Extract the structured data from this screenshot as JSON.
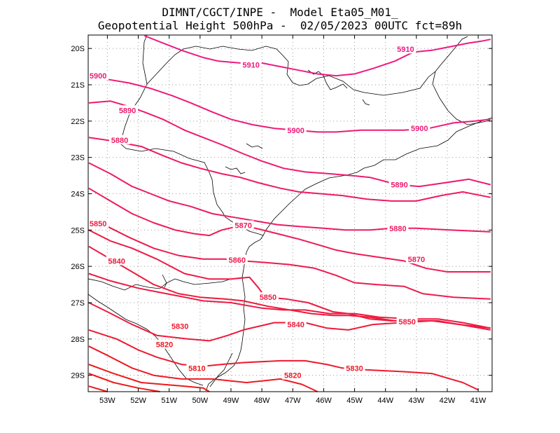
{
  "title": {
    "line1": "DIMNT/CGCT/INPE -  Model Eta05_M01_",
    "line2": "Geopotential Height 500hPa -  02/05/2023 00UTC fct=89h"
  },
  "axes": {
    "lon_ticks": [
      "53W",
      "52W",
      "51W",
      "50W",
      "49W",
      "48W",
      "47W",
      "46W",
      "45W",
      "44W",
      "43W",
      "42W",
      "41W"
    ],
    "lat_ticks": [
      "20S",
      "21S",
      "22S",
      "23S",
      "24S",
      "25S",
      "26S",
      "27S",
      "28S",
      "29S"
    ]
  },
  "colors": {
    "high": "#ee1a82",
    "low": "#ee1a1a"
  },
  "contours": [
    {
      "value": 5810,
      "pts": [
        [
          -53.6,
          -29.3
        ],
        [
          -53.0,
          -29.45
        ]
      ]
    },
    {
      "value": 5810,
      "pts": [
        [
          -53.6,
          -28.95
        ],
        [
          -52.8,
          -29.2
        ],
        [
          -52.0,
          -29.35
        ],
        [
          -51.3,
          -29.45
        ]
      ]
    },
    {
      "value": 5810,
      "pts": [
        [
          -53.6,
          -28.7
        ],
        [
          -52.8,
          -28.95
        ],
        [
          -51.9,
          -29.2
        ],
        [
          -50.5,
          -29.3
        ],
        [
          -49.9,
          -29.35
        ],
        [
          -49.7,
          -29.45
        ]
      ]
    },
    {
      "value": 5820,
      "pts": [
        [
          -53.6,
          -28.2
        ],
        [
          -53.0,
          -28.45
        ],
        [
          -52.2,
          -28.8
        ],
        [
          -51.5,
          -29.0
        ],
        [
          -50.6,
          -29.1
        ],
        [
          -49.6,
          -29.1
        ],
        [
          -48.5,
          -29.2
        ],
        [
          -47.4,
          -29.1
        ],
        [
          -46.7,
          -29.25
        ],
        [
          -46.2,
          -29.45
        ]
      ]
    },
    {
      "value": 5830,
      "pts": [
        [
          -53.6,
          -27.75
        ],
        [
          -52.7,
          -28.0
        ],
        [
          -52.0,
          -28.3
        ],
        [
          -51.4,
          -28.5
        ],
        [
          -50.6,
          -28.7
        ],
        [
          -49.9,
          -28.75
        ],
        [
          -49.3,
          -28.7
        ],
        [
          -48.6,
          -28.65
        ],
        [
          -47.4,
          -28.6
        ],
        [
          -46.6,
          -28.6
        ],
        [
          -45.9,
          -28.7
        ],
        [
          -45.4,
          -28.8
        ],
        [
          -44.6,
          -28.85
        ],
        [
          -43.4,
          -28.9
        ],
        [
          -42.5,
          -28.95
        ],
        [
          -41.5,
          -29.2
        ],
        [
          -41.0,
          -29.4
        ]
      ]
    },
    {
      "value": 5840,
      "pts": [
        [
          -53.6,
          -27.0
        ],
        [
          -53.0,
          -27.25
        ],
        [
          -52.2,
          -27.6
        ],
        [
          -51.4,
          -27.9
        ],
        [
          -50.4,
          -28.0
        ],
        [
          -49.7,
          -28.05
        ],
        [
          -49.1,
          -27.9
        ],
        [
          -48.6,
          -27.75
        ],
        [
          -47.6,
          -27.55
        ],
        [
          -46.6,
          -27.55
        ],
        [
          -45.9,
          -27.7
        ],
        [
          -45.2,
          -27.75
        ],
        [
          -44.4,
          -27.6
        ],
        [
          -43.5,
          -27.55
        ],
        [
          -42.5,
          -27.5
        ],
        [
          -41.6,
          -27.6
        ],
        [
          -40.6,
          -27.75
        ]
      ]
    },
    {
      "value": 5850,
      "pts": [
        [
          -53.6,
          -26.2
        ],
        [
          -52.9,
          -26.4
        ],
        [
          -52.0,
          -26.6
        ],
        [
          -51.4,
          -26.7
        ],
        [
          -50.8,
          -26.8
        ],
        [
          -49.9,
          -26.95
        ],
        [
          -49.0,
          -27.0
        ],
        [
          -48.0,
          -27.15
        ],
        [
          -47.3,
          -27.2
        ],
        [
          -46.6,
          -27.2
        ],
        [
          -45.8,
          -27.3
        ],
        [
          -45.0,
          -27.3
        ],
        [
          -44.2,
          -27.4
        ],
        [
          -43.1,
          -27.45
        ],
        [
          -42.3,
          -27.45
        ],
        [
          -41.5,
          -27.55
        ],
        [
          -40.6,
          -27.7
        ]
      ]
    },
    {
      "value": 5850,
      "pts": [
        [
          -53.6,
          -25.0
        ],
        [
          -52.9,
          -25.3
        ],
        [
          -52.2,
          -25.5
        ],
        [
          -51.4,
          -25.8
        ],
        [
          -50.5,
          -26.2
        ],
        [
          -49.7,
          -26.35
        ],
        [
          -49.0,
          -26.35
        ],
        [
          -48.4,
          -26.3
        ],
        [
          -48.1,
          -26.6
        ],
        [
          -47.9,
          -26.85
        ],
        [
          -47.2,
          -26.9
        ],
        [
          -46.5,
          -27.0
        ],
        [
          -45.7,
          -27.25
        ],
        [
          -45.2,
          -27.3
        ],
        [
          -44.5,
          -27.45
        ],
        [
          -43.8,
          -27.5
        ],
        [
          -43.0,
          -27.5
        ],
        [
          -42.3,
          -27.5
        ],
        [
          -41.6,
          -27.6
        ],
        [
          -40.6,
          -27.7
        ]
      ]
    },
    {
      "value": 5840,
      "pts": [
        [
          -53.6,
          -25.45
        ],
        [
          -52.8,
          -25.85
        ],
        [
          -52.2,
          -26.15
        ],
        [
          -51.5,
          -26.5
        ],
        [
          -50.7,
          -26.75
        ],
        [
          -50.0,
          -26.85
        ],
        [
          -49.2,
          -26.9
        ],
        [
          -48.6,
          -26.95
        ],
        [
          -47.8,
          -27.1
        ],
        [
          -47.1,
          -27.2
        ],
        [
          -46.4,
          -27.3
        ],
        [
          -45.7,
          -27.35
        ],
        [
          -45.2,
          -27.35
        ],
        [
          -44.5,
          -27.4
        ],
        [
          -43.7,
          -27.5
        ],
        [
          -43.0,
          -27.5
        ]
      ]
    },
    {
      "value": 5860,
      "pts": [
        [
          -53.6,
          -24.75
        ],
        [
          -53.0,
          -24.9
        ],
        [
          -52.3,
          -25.2
        ],
        [
          -51.5,
          -25.5
        ],
        [
          -50.7,
          -25.7
        ],
        [
          -49.9,
          -25.8
        ],
        [
          -49.2,
          -25.8
        ],
        [
          -48.6,
          -25.85
        ],
        [
          -47.8,
          -25.9
        ],
        [
          -47.1,
          -25.95
        ],
        [
          -46.3,
          -26.05
        ],
        [
          -45.6,
          -26.25
        ],
        [
          -45.0,
          -26.45
        ],
        [
          -44.3,
          -26.5
        ],
        [
          -43.4,
          -26.55
        ],
        [
          -42.8,
          -26.75
        ],
        [
          -41.8,
          -26.85
        ],
        [
          -40.6,
          -26.9
        ]
      ]
    },
    {
      "value": 5870,
      "pts": [
        [
          -53.6,
          -23.85
        ],
        [
          -52.9,
          -24.2
        ],
        [
          -52.2,
          -24.55
        ],
        [
          -51.5,
          -24.8
        ],
        [
          -50.8,
          -25.0
        ],
        [
          -50.2,
          -25.1
        ],
        [
          -49.7,
          -25.15
        ],
        [
          -49.3,
          -25.0
        ],
        [
          -48.8,
          -24.9
        ],
        [
          -48.2,
          -24.95
        ],
        [
          -47.5,
          -25.1
        ],
        [
          -46.8,
          -25.25
        ],
        [
          -46.2,
          -25.4
        ],
        [
          -45.6,
          -25.55
        ],
        [
          -45.0,
          -25.65
        ],
        [
          -44.2,
          -25.75
        ],
        [
          -43.4,
          -25.85
        ],
        [
          -42.7,
          -26.05
        ],
        [
          -42.0,
          -26.15
        ],
        [
          -40.6,
          -26.15
        ]
      ]
    },
    {
      "value": 5880,
      "pts": [
        [
          -53.6,
          -23.15
        ],
        [
          -52.9,
          -23.45
        ],
        [
          -52.2,
          -23.8
        ],
        [
          -51.6,
          -24.0
        ],
        [
          -51.0,
          -24.2
        ],
        [
          -50.3,
          -24.35
        ],
        [
          -49.6,
          -24.55
        ],
        [
          -48.9,
          -24.65
        ],
        [
          -48.2,
          -24.75
        ],
        [
          -47.5,
          -24.85
        ],
        [
          -46.8,
          -24.9
        ],
        [
          -46.0,
          -24.95
        ],
        [
          -45.3,
          -25.0
        ],
        [
          -44.5,
          -25.0
        ],
        [
          -43.8,
          -24.95
        ],
        [
          -43.0,
          -24.95
        ],
        [
          -41.9,
          -25.0
        ],
        [
          -40.6,
          -25.05
        ]
      ]
    },
    {
      "value": 5880,
      "pts": [
        [
          -53.6,
          -22.45
        ],
        [
          -52.8,
          -22.55
        ],
        [
          -51.9,
          -22.7
        ],
        [
          -51.2,
          -22.95
        ],
        [
          -50.6,
          -23.15
        ],
        [
          -50.0,
          -23.3
        ],
        [
          -49.3,
          -23.45
        ],
        [
          -48.7,
          -23.55
        ],
        [
          -48.1,
          -23.7
        ],
        [
          -47.4,
          -23.85
        ],
        [
          -46.8,
          -23.95
        ],
        [
          -46.1,
          -24.0
        ],
        [
          -45.4,
          -24.05
        ],
        [
          -44.6,
          -24.15
        ],
        [
          -43.8,
          -24.2
        ],
        [
          -43.0,
          -24.2
        ],
        [
          -42.2,
          -24.05
        ],
        [
          -41.5,
          -23.95
        ],
        [
          -40.6,
          -24.1
        ]
      ]
    },
    {
      "value": 5890,
      "pts": [
        [
          -53.6,
          -21.5
        ],
        [
          -52.9,
          -21.45
        ],
        [
          -52.3,
          -21.6
        ],
        [
          -51.8,
          -21.75
        ],
        [
          -51.2,
          -21.95
        ],
        [
          -50.5,
          -22.25
        ],
        [
          -49.9,
          -22.45
        ],
        [
          -49.3,
          -22.65
        ],
        [
          -48.6,
          -22.9
        ],
        [
          -48.0,
          -23.1
        ],
        [
          -47.3,
          -23.3
        ],
        [
          -46.6,
          -23.4
        ],
        [
          -45.8,
          -23.45
        ],
        [
          -45.1,
          -23.5
        ],
        [
          -44.5,
          -23.55
        ],
        [
          -43.6,
          -23.75
        ],
        [
          -42.9,
          -23.8
        ],
        [
          -42.1,
          -23.7
        ],
        [
          -41.3,
          -23.6
        ],
        [
          -40.6,
          -23.75
        ]
      ]
    },
    {
      "value": 5900,
      "pts": [
        [
          -53.6,
          -20.8
        ],
        [
          -53.0,
          -20.85
        ],
        [
          -52.3,
          -20.95
        ],
        [
          -51.6,
          -21.1
        ],
        [
          -50.9,
          -21.3
        ],
        [
          -50.3,
          -21.5
        ],
        [
          -49.6,
          -21.75
        ],
        [
          -49.0,
          -21.95
        ],
        [
          -48.3,
          -22.1
        ],
        [
          -47.6,
          -22.2
        ],
        [
          -46.9,
          -22.25
        ],
        [
          -46.2,
          -22.3
        ],
        [
          -45.6,
          -22.3
        ],
        [
          -44.8,
          -22.25
        ],
        [
          -44.1,
          -22.25
        ],
        [
          -43.4,
          -22.25
        ],
        [
          -42.6,
          -22.2
        ],
        [
          -41.8,
          -22.05
        ],
        [
          -41.1,
          -22.0
        ],
        [
          -40.6,
          -21.95
        ]
      ]
    },
    {
      "value": 5910,
      "pts": [
        [
          -51.8,
          -19.65
        ],
        [
          -51.2,
          -19.85
        ],
        [
          -50.6,
          -20.05
        ],
        [
          -49.9,
          -20.25
        ],
        [
          -49.4,
          -20.35
        ],
        [
          -48.7,
          -20.4
        ],
        [
          -48.0,
          -20.4
        ],
        [
          -47.4,
          -20.5
        ],
        [
          -46.8,
          -20.6
        ],
        [
          -46.2,
          -20.7
        ],
        [
          -45.6,
          -20.75
        ],
        [
          -45.0,
          -20.7
        ],
        [
          -44.4,
          -20.55
        ],
        [
          -43.7,
          -20.35
        ],
        [
          -43.1,
          -20.1
        ],
        [
          -42.5,
          -20.05
        ],
        [
          -41.9,
          -19.95
        ],
        [
          -41.3,
          -19.85
        ],
        [
          -40.9,
          -19.8
        ],
        [
          -40.6,
          -19.75
        ]
      ]
    }
  ],
  "contour_labels": [
    {
      "text": "5910",
      "lon": -43.35,
      "lat": -20.02
    },
    {
      "text": "5910",
      "lon": -48.35,
      "lat": -20.45
    },
    {
      "text": "5900",
      "lon": -53.3,
      "lat": -20.75
    },
    {
      "text": "5890",
      "lon": -52.35,
      "lat": -21.7
    },
    {
      "text": "5900",
      "lon": -46.9,
      "lat": -22.25
    },
    {
      "text": "5900",
      "lon": -42.9,
      "lat": -22.2
    },
    {
      "text": "5880",
      "lon": -52.6,
      "lat": -22.52
    },
    {
      "text": "5890",
      "lon": -43.55,
      "lat": -23.75
    },
    {
      "text": "5870",
      "lon": -48.6,
      "lat": -24.87
    },
    {
      "text": "5880",
      "lon": -43.6,
      "lat": -24.95
    },
    {
      "text": "5850",
      "lon": -53.3,
      "lat": -24.82
    },
    {
      "text": "5860",
      "lon": -48.8,
      "lat": -25.82
    },
    {
      "text": "5840",
      "lon": -52.7,
      "lat": -25.85
    },
    {
      "text": "5870",
      "lon": -43.0,
      "lat": -25.8
    },
    {
      "text": "5850",
      "lon": -47.8,
      "lat": -26.85
    },
    {
      "text": "5840",
      "lon": -46.9,
      "lat": -27.6
    },
    {
      "text": "5850",
      "lon": -43.3,
      "lat": -27.52
    },
    {
      "text": "5830",
      "lon": -50.65,
      "lat": -27.65
    },
    {
      "text": "5820",
      "lon": -51.15,
      "lat": -28.15
    },
    {
      "text": "5830",
      "lon": -45.0,
      "lat": -28.8
    },
    {
      "text": "5810",
      "lon": -50.1,
      "lat": -28.8
    },
    {
      "text": "5820",
      "lon": -47.0,
      "lat": -29.0
    }
  ]
}
